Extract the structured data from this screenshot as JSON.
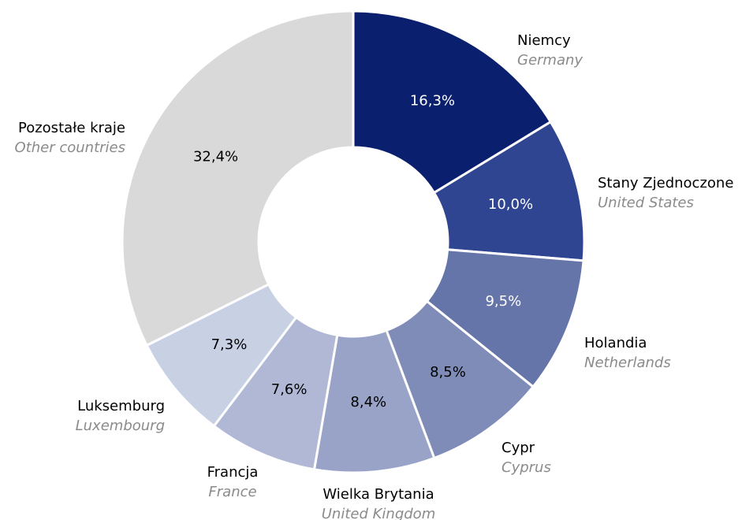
{
  "chart_data": {
    "type": "donut",
    "categories": [
      "Niemcy",
      "Stany Zjednoczone",
      "Holandia",
      "Cypr",
      "Wielka Brytania",
      "Francja",
      "Luksemburg",
      "Pozostałe kraje"
    ],
    "categories_en": [
      "Germany",
      "United States",
      "Netherlands",
      "Cyprus",
      "United Kingdom",
      "France",
      "Luxembourg",
      "Other countries"
    ],
    "values": [
      16.3,
      10.0,
      9.5,
      8.5,
      8.4,
      7.6,
      7.3,
      32.4
    ],
    "value_labels": [
      "16,3%",
      "10,0%",
      "9,5%",
      "8,5%",
      "8,4%",
      "7,6%",
      "7,3%",
      "32,4%"
    ],
    "colors": [
      "#0a1f6e",
      "#2f4592",
      "#6574a9",
      "#7f8cb8",
      "#98a3c7",
      "#b0b8d5",
      "#c8d0e4",
      "#d9d9d9"
    ]
  }
}
